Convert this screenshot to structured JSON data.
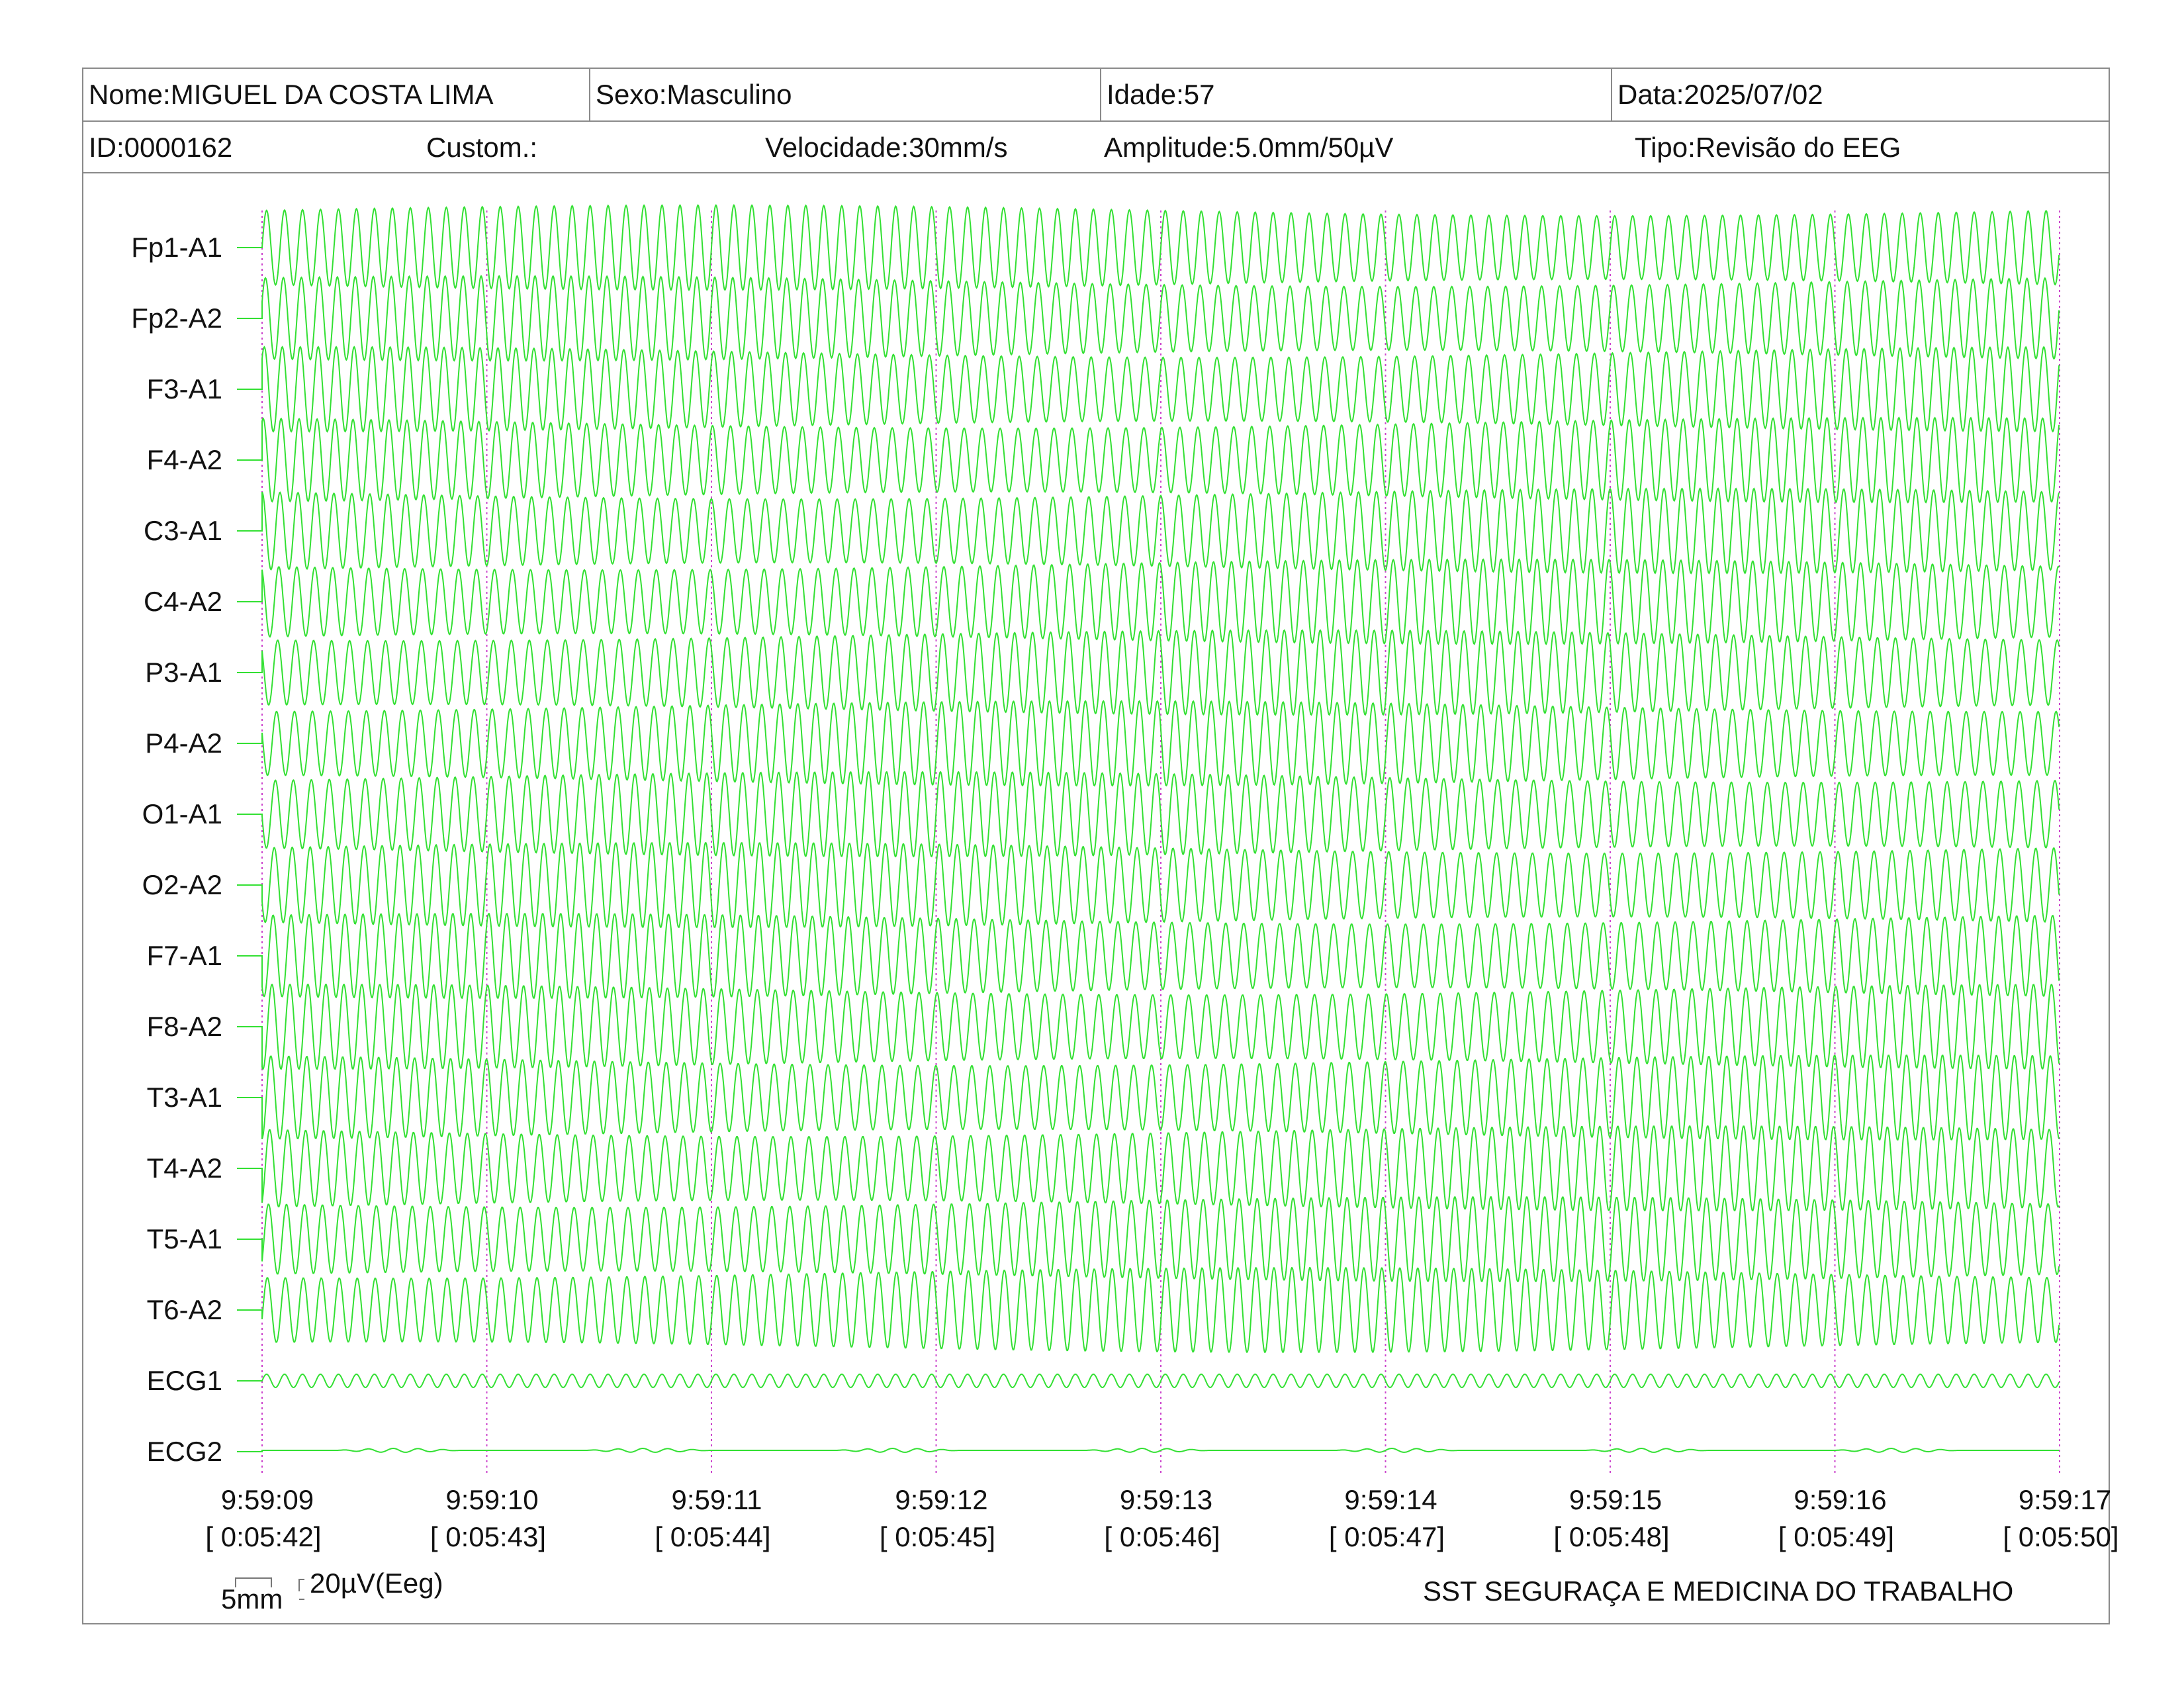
{
  "header": {
    "nome": "Nome:MIGUEL DA COSTA LIMA",
    "sexo": "Sexo:Masculino",
    "idade": "Idade:57",
    "data": "Data:2025/07/02",
    "id": "ID:0000162",
    "custom": "Custom.:",
    "velocidade": "Velocidade:30mm/s",
    "amplitude": "Amplitude:5.0mm/50µV",
    "tipo": "Tipo:Revisão do EEG"
  },
  "scale": {
    "time_label": "5mm",
    "amp_label": "20µV(Eeg)"
  },
  "footer": {
    "org": "SST SEGURAÇA E MEDICINA DO TRABALHO"
  },
  "colors": {
    "trace": "#33e033",
    "marker": "#cc44cc",
    "border": "#8a8a8a"
  },
  "chart_data": {
    "type": "line",
    "title": "",
    "xlabel": "",
    "ylabel": "",
    "channels": [
      "Fp1-A1",
      "Fp2-A2",
      "F3-A1",
      "F4-A2",
      "C3-A1",
      "C4-A2",
      "P3-A1",
      "P4-A2",
      "O1-A1",
      "O2-A2",
      "F7-A1",
      "F8-A2",
      "T3-A1",
      "T4-A2",
      "T5-A1",
      "T6-A2",
      "ECG1",
      "ECG2"
    ],
    "time_ticks": [
      {
        "clock": "9:59:09",
        "elapsed": "[ 0:05:42]"
      },
      {
        "clock": "9:59:10",
        "elapsed": "[ 0:05:43]"
      },
      {
        "clock": "9:59:11",
        "elapsed": "[ 0:05:44]"
      },
      {
        "clock": "9:59:12",
        "elapsed": "[ 0:05:45]"
      },
      {
        "clock": "9:59:13",
        "elapsed": "[ 0:05:46]"
      },
      {
        "clock": "9:59:14",
        "elapsed": "[ 0:05:47]"
      },
      {
        "clock": "9:59:15",
        "elapsed": "[ 0:05:48]"
      },
      {
        "clock": "9:59:16",
        "elapsed": "[ 0:05:49]"
      },
      {
        "clock": "9:59:17",
        "elapsed": "[ 0:05:50]"
      }
    ],
    "x_range_s": [
      0,
      8
    ],
    "eeg_frequency_hz": 12.5,
    "ecg1_frequency_hz": 12.5,
    "grid": false,
    "second_markers": true,
    "marker_style": "dotted-vertical"
  }
}
